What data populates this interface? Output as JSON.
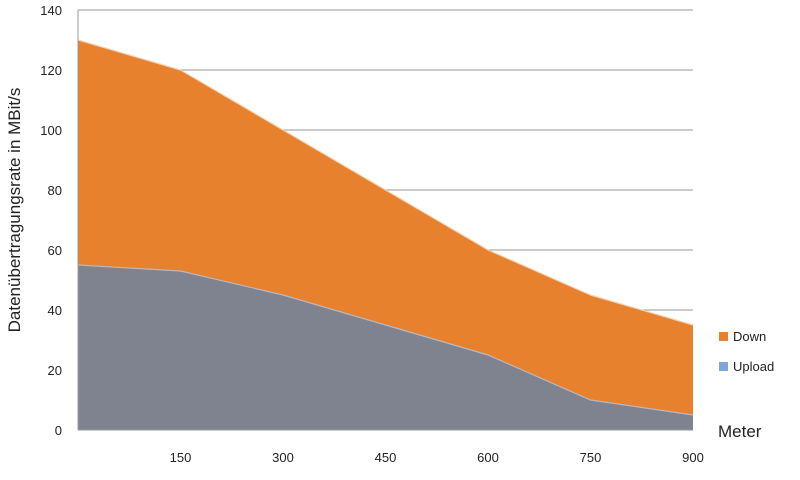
{
  "chart_data": {
    "type": "area",
    "stacked": false,
    "x": [
      0,
      150,
      300,
      450,
      600,
      750,
      900
    ],
    "x_tick_labels": [
      "150",
      "300",
      "450",
      "600",
      "750",
      "900"
    ],
    "x_ticks": [
      150,
      300,
      450,
      600,
      750,
      900
    ],
    "y_ticks": [
      0,
      20,
      40,
      60,
      80,
      100,
      120,
      140
    ],
    "y_tick_labels": [
      "0",
      "20",
      "40",
      "60",
      "80",
      "100",
      "120",
      "140"
    ],
    "xlabel": "Meter",
    "ylabel": "Datenübertragungsrate in MBit/s",
    "xlim": [
      0,
      900
    ],
    "ylim": [
      0,
      140
    ],
    "grid": "horizontal",
    "legend_position": "right",
    "series": [
      {
        "name": "Down",
        "values": [
          130,
          120,
          100,
          80,
          60,
          45,
          35
        ],
        "color": "#e8812e"
      },
      {
        "name": "Upload",
        "values": [
          55,
          53,
          45,
          35,
          25,
          10,
          5
        ],
        "color": "#7f828f",
        "legend_color": "#7ea6d8"
      }
    ]
  }
}
